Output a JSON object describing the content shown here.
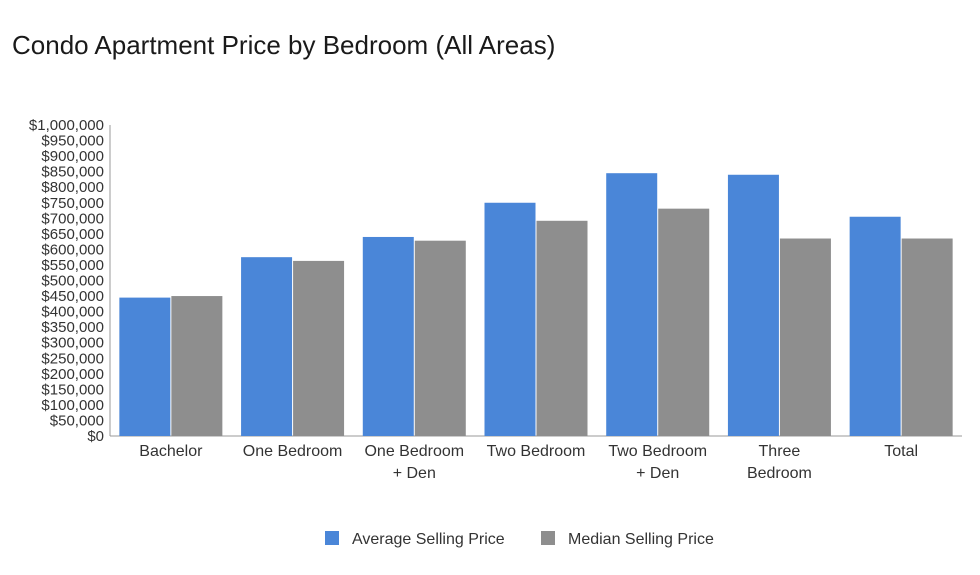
{
  "chart_data": {
    "type": "bar",
    "title": "Condo Apartment Price by Bedroom (All Areas)",
    "categories": [
      [
        "Bachelor"
      ],
      [
        "One Bedroom"
      ],
      [
        "One Bedroom",
        "+ Den"
      ],
      [
        "Two Bedroom"
      ],
      [
        "Two Bedroom",
        "+ Den"
      ],
      [
        "Three",
        "Bedroom"
      ],
      [
        "Total"
      ]
    ],
    "series": [
      {
        "name": "Average Selling Price",
        "color": "#4a86d8",
        "values": [
          445000,
          575000,
          640000,
          750000,
          845000,
          840000,
          705000
        ]
      },
      {
        "name": "Median Selling Price",
        "color": "#8e8e8e",
        "values": [
          450000,
          563000,
          628000,
          692000,
          731000,
          635000,
          635000
        ]
      }
    ],
    "ylim": [
      0,
      1000000
    ],
    "yticks": [
      "$0",
      "$50,000",
      "$100,000",
      "$150,000",
      "$200,000",
      "$250,000",
      "$300,000",
      "$350,000",
      "$400,000",
      "$450,000",
      "$500,000",
      "$550,000",
      "$600,000",
      "$650,000",
      "$700,000",
      "$750,000",
      "$800,000",
      "$850,000",
      "$900,000",
      "$950,000",
      "$1,000,000"
    ],
    "xlabel": "",
    "ylabel": "",
    "grid": false,
    "legend_position": "bottom"
  }
}
